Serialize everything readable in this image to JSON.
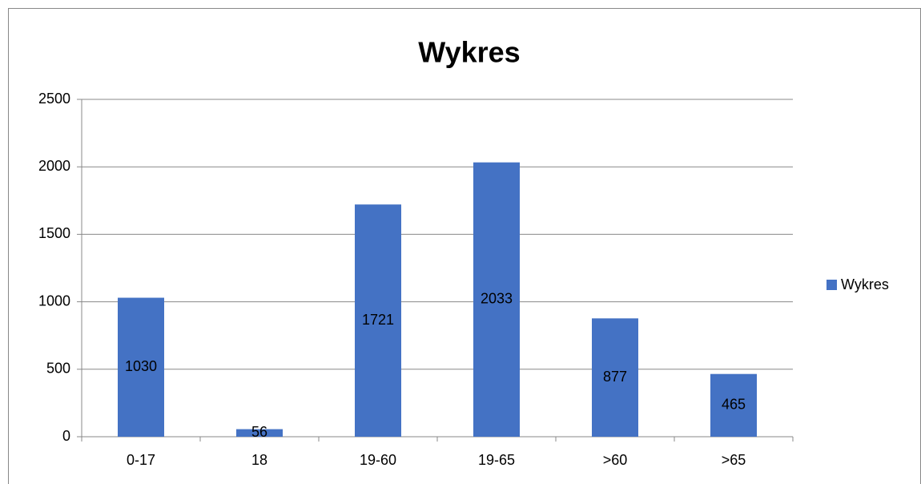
{
  "chart_data": {
    "type": "bar",
    "title": "Wykres",
    "categories": [
      "0-17",
      "18",
      "19-60",
      "19-65",
      ">60",
      ">65"
    ],
    "series": [
      {
        "name": "Wykres",
        "color": "#4472c4",
        "values": [
          1030,
          56,
          1721,
          2033,
          877,
          465
        ]
      }
    ],
    "ylim": [
      0,
      2500
    ],
    "yticks": [
      0,
      500,
      1000,
      1500,
      2000,
      2500
    ],
    "grid": true,
    "legend": "right"
  }
}
